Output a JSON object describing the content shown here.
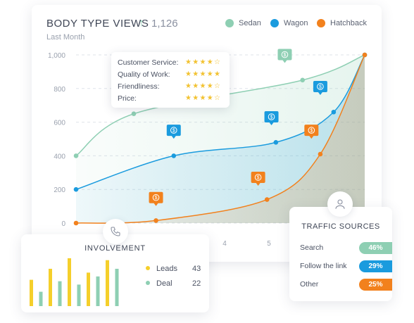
{
  "header": {
    "title": "BODY TYPE VIEWS",
    "trend_icon": "arrow-up-icon",
    "total": "1,126",
    "subtitle": "Last Month"
  },
  "legend": [
    {
      "label": "Sedan",
      "color": "#8ecfb3"
    },
    {
      "label": "Wagon",
      "color": "#1a9bde"
    },
    {
      "label": "Hatchback",
      "color": "#f2811d"
    }
  ],
  "tooltip": {
    "rows": [
      {
        "label": "Customer Service:",
        "stars": "★★★★☆"
      },
      {
        "label": "Quality of Work:",
        "stars": "★★★★★"
      },
      {
        "label": "Friendliness:",
        "stars": "★★★★☆"
      },
      {
        "label": "Price:",
        "stars": "★★★★☆"
      }
    ]
  },
  "chart_data": {
    "type": "area",
    "ylim": [
      0,
      1000
    ],
    "y_ticks": [
      "1,000",
      "800",
      "600",
      "400",
      "200",
      "0"
    ],
    "x_ticks_visible": [
      "4",
      "5"
    ],
    "series": [
      {
        "name": "Sedan",
        "color": "#8ecfb3",
        "points": [
          [
            0.5,
            400
          ],
          [
            1.8,
            650
          ],
          [
            5.6,
            850
          ],
          [
            7.0,
            1000
          ]
        ]
      },
      {
        "name": "Wagon",
        "color": "#1a9bde",
        "points": [
          [
            0.5,
            200
          ],
          [
            2.7,
            400
          ],
          [
            5.0,
            480
          ],
          [
            6.3,
            660
          ],
          [
            7.0,
            1000
          ]
        ]
      },
      {
        "name": "Hatchback",
        "color": "#f2811d",
        "points": [
          [
            0.5,
            0
          ],
          [
            2.3,
            15
          ],
          [
            4.8,
            140
          ],
          [
            6.0,
            410
          ],
          [
            7.0,
            1000
          ]
        ]
      }
    ],
    "markers": [
      {
        "series": "Sedan",
        "x": 5.2,
        "y": 960,
        "icon": "dollar-icon"
      },
      {
        "series": "Wagon",
        "x": 2.7,
        "y": 510,
        "icon": "dollar-icon"
      },
      {
        "series": "Wagon",
        "x": 4.9,
        "y": 590,
        "icon": "dollar-icon"
      },
      {
        "series": "Wagon",
        "x": 6.0,
        "y": 770,
        "icon": "dollar-icon"
      },
      {
        "series": "Hatchback",
        "x": 2.3,
        "y": 110,
        "icon": "dollar-icon"
      },
      {
        "series": "Hatchback",
        "x": 4.6,
        "y": 230,
        "icon": "dollar-icon"
      },
      {
        "series": "Hatchback",
        "x": 5.8,
        "y": 510,
        "icon": "dollar-icon"
      }
    ]
  },
  "involvement": {
    "title": "INVOLVEMENT",
    "icon": "phone-icon",
    "legend": [
      {
        "label": "Leads",
        "value": "43",
        "color": "#f5cf2b"
      },
      {
        "label": "Deal",
        "value": "22",
        "color": "#8ecfb3"
      }
    ],
    "bars": [
      {
        "value": 0.55,
        "color": "#f5cf2b"
      },
      {
        "value": 0.3,
        "color": "#8ecfb3"
      },
      {
        "value": 0.78,
        "color": "#f5cf2b"
      },
      {
        "value": 0.52,
        "color": "#8ecfb3"
      },
      {
        "value": 1.0,
        "color": "#f5cf2b"
      },
      {
        "value": 0.45,
        "color": "#8ecfb3"
      },
      {
        "value": 0.7,
        "color": "#f5cf2b"
      },
      {
        "value": 0.62,
        "color": "#8ecfb3"
      },
      {
        "value": 0.96,
        "color": "#f5cf2b"
      },
      {
        "value": 0.78,
        "color": "#8ecfb3"
      }
    ]
  },
  "traffic": {
    "title": "TRAFFIC SOURCES",
    "icon": "user-icon",
    "rows": [
      {
        "label": "Search",
        "value": "46%",
        "color": "#8ecfb3",
        "text_color": "#ffffff"
      },
      {
        "label": "Follow the link",
        "value": "29%",
        "color": "#1a9bde",
        "text_color": "#ffffff"
      },
      {
        "label": "Other",
        "value": "25%",
        "color": "#f2811d",
        "text_color": "#ffffff"
      }
    ]
  }
}
